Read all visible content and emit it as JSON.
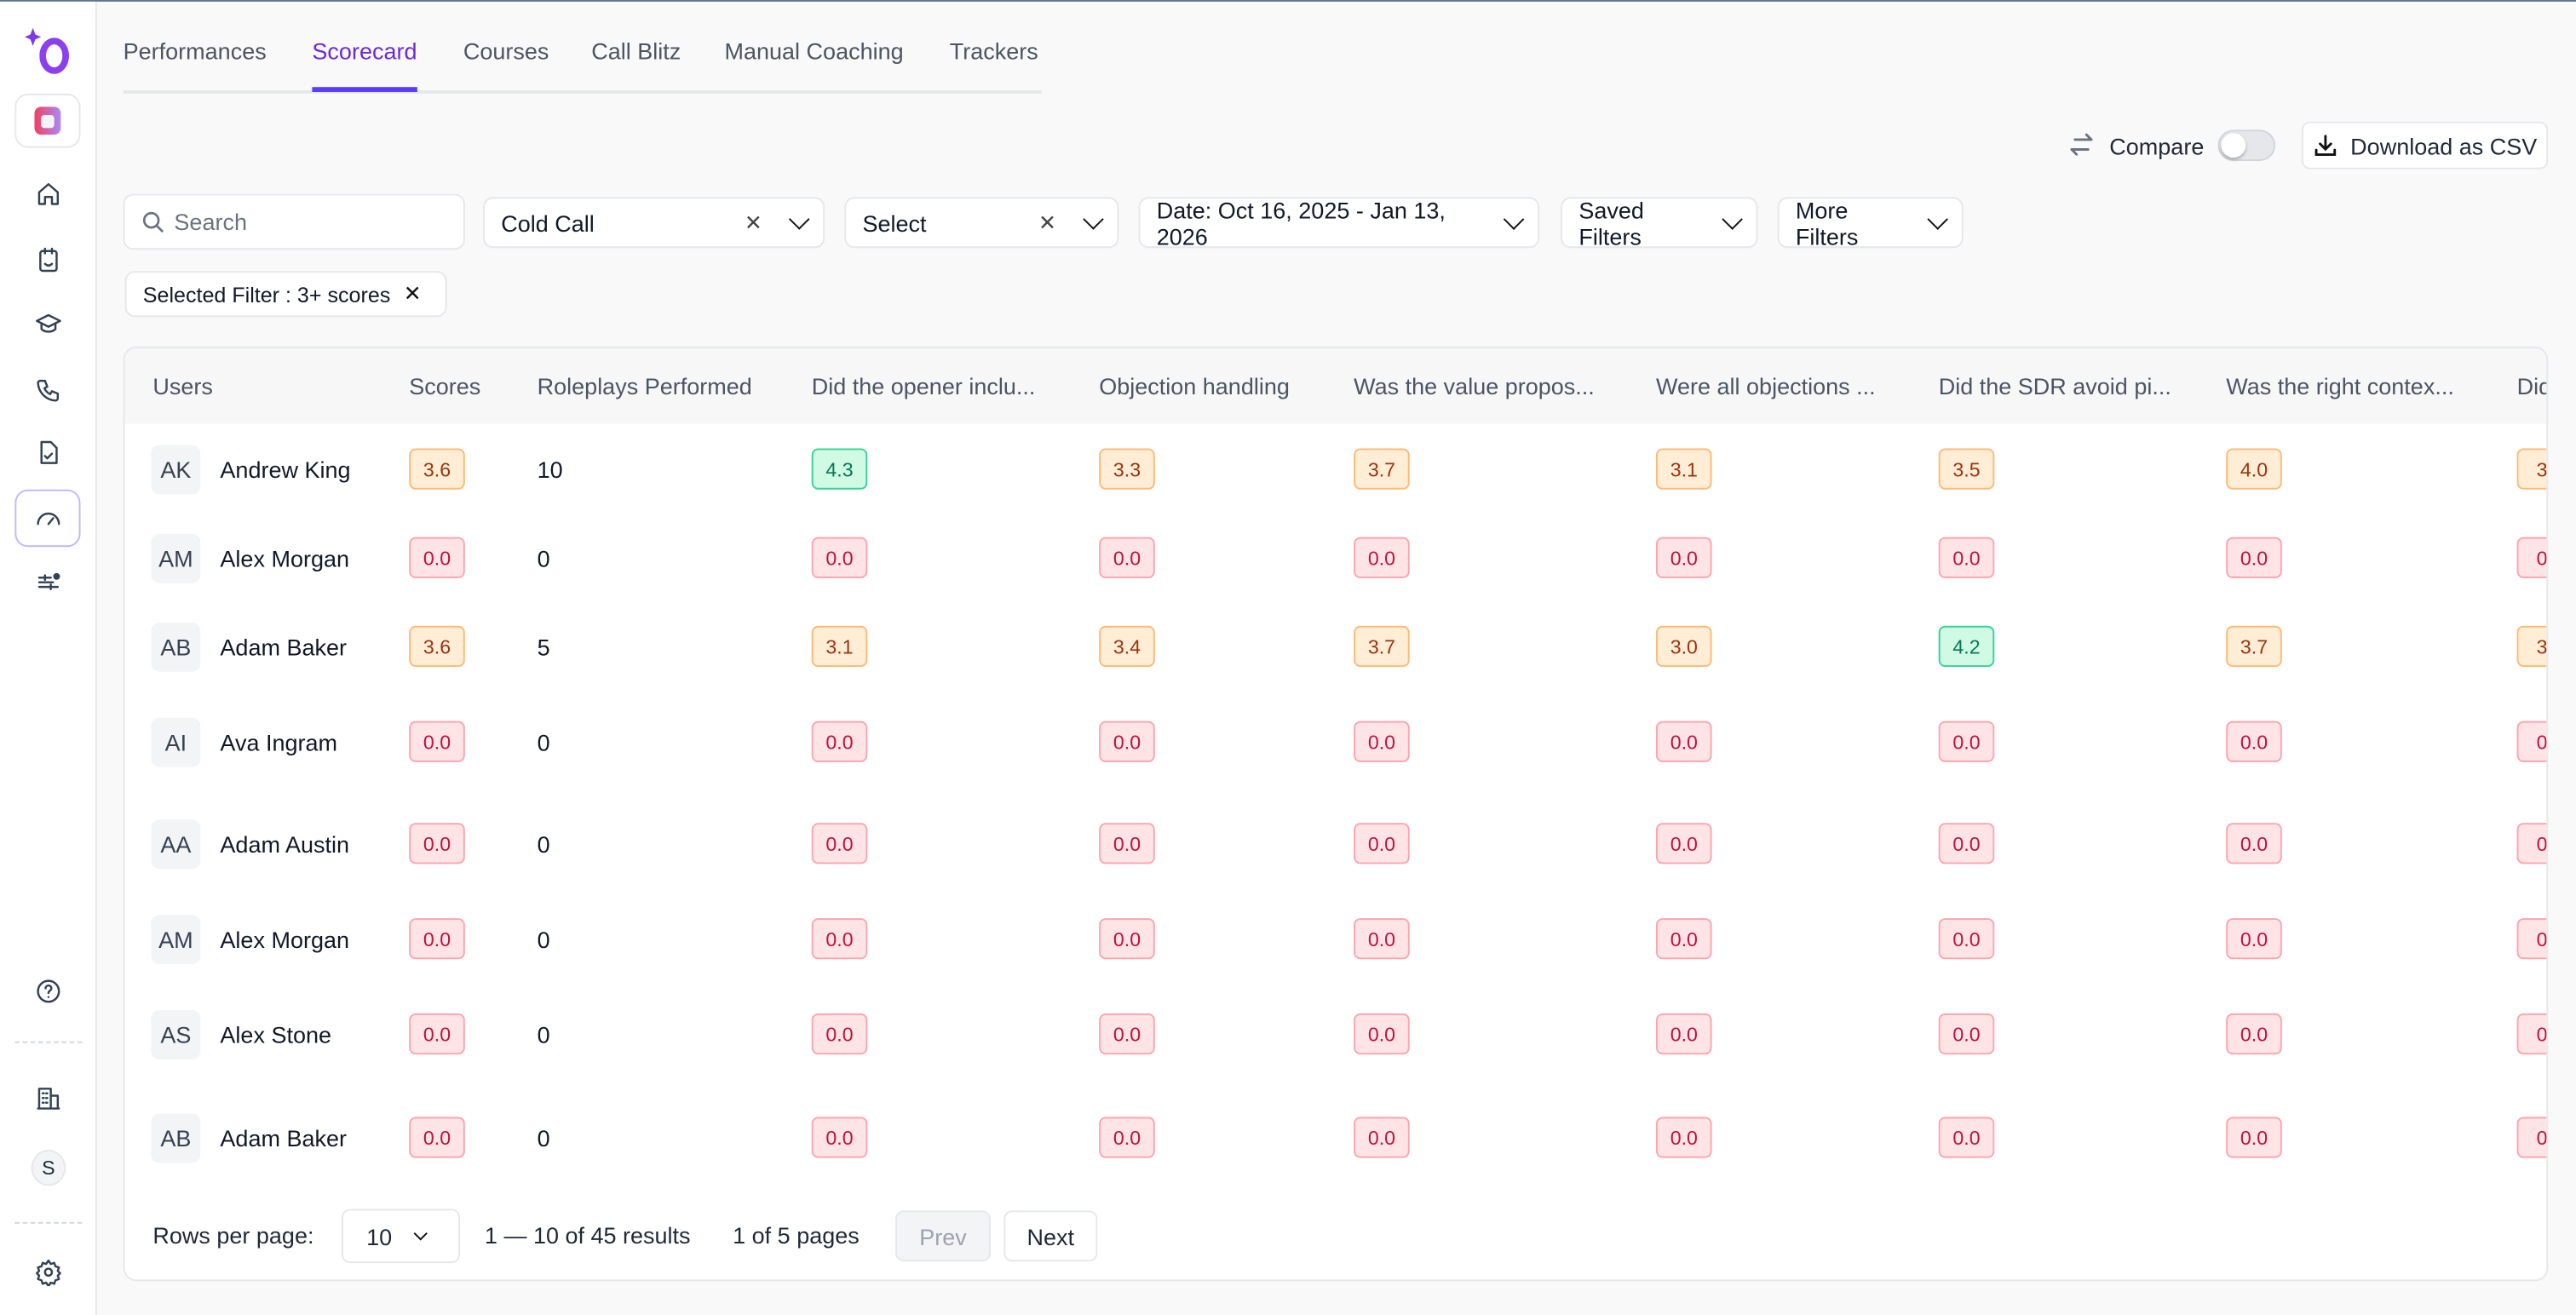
{
  "colors": {
    "accent": "#5b3df5",
    "badge_red": "#ffe4e6",
    "badge_orange": "#ffedd5",
    "badge_green": "#d1fae5"
  },
  "tabs": [
    {
      "label": "Performances"
    },
    {
      "label": "Scorecard",
      "active": true
    },
    {
      "label": "Courses"
    },
    {
      "label": "Call Blitz"
    },
    {
      "label": "Manual Coaching"
    },
    {
      "label": "Trackers"
    }
  ],
  "toolbar": {
    "compare_label": "Compare",
    "compare_on": false,
    "download_label": "Download as CSV"
  },
  "filters": {
    "search_placeholder": "Search",
    "type_value": "Cold Call",
    "second_placeholder": "Select",
    "date_label": "Date: Oct 16, 2025 - Jan 13, 2026",
    "saved_label": "Saved Filters",
    "more_label": "More Filters",
    "chip_label": "Selected Filter : 3+ scores"
  },
  "sidebar": {
    "user_initial": "S"
  },
  "table": {
    "columns": [
      "Users",
      "Scores",
      "Roleplays Performed",
      "Did the opener inclu...",
      "Objection handling",
      "Was the value propos...",
      "Were all objections ...",
      "Did the SDR avoid pi...",
      "Was the right contex...",
      "Did"
    ],
    "rows": [
      {
        "initials": "AK",
        "name": "Andrew King",
        "score": "3.6",
        "score_tone": "orange",
        "roleplays": "10",
        "cells": [
          [
            "4.3",
            "green"
          ],
          [
            "3.3",
            "orange"
          ],
          [
            "3.7",
            "orange"
          ],
          [
            "3.1",
            "orange"
          ],
          [
            "3.5",
            "orange"
          ],
          [
            "4.0",
            "orange"
          ],
          [
            "3.",
            "orange"
          ]
        ]
      },
      {
        "initials": "AM",
        "name": "Alex Morgan",
        "score": "0.0",
        "score_tone": "red",
        "roleplays": "0",
        "cells": [
          [
            "0.0",
            "red"
          ],
          [
            "0.0",
            "red"
          ],
          [
            "0.0",
            "red"
          ],
          [
            "0.0",
            "red"
          ],
          [
            "0.0",
            "red"
          ],
          [
            "0.0",
            "red"
          ],
          [
            "0.",
            "red"
          ]
        ]
      },
      {
        "initials": "AB",
        "name": "Adam Baker",
        "score": "3.6",
        "score_tone": "orange",
        "roleplays": "5",
        "cells": [
          [
            "3.1",
            "orange"
          ],
          [
            "3.4",
            "orange"
          ],
          [
            "3.7",
            "orange"
          ],
          [
            "3.0",
            "orange"
          ],
          [
            "4.2",
            "green"
          ],
          [
            "3.7",
            "orange"
          ],
          [
            "3.",
            "orange"
          ]
        ]
      },
      {
        "initials": "AI",
        "name": "Ava Ingram",
        "score": "0.0",
        "score_tone": "red",
        "roleplays": "0",
        "cells": [
          [
            "0.0",
            "red"
          ],
          [
            "0.0",
            "red"
          ],
          [
            "0.0",
            "red"
          ],
          [
            "0.0",
            "red"
          ],
          [
            "0.0",
            "red"
          ],
          [
            "0.0",
            "red"
          ],
          [
            "0.",
            "red"
          ]
        ]
      },
      {
        "initials": "AA",
        "name": "Adam Austin",
        "score": "0.0",
        "score_tone": "red",
        "roleplays": "0",
        "cells": [
          [
            "0.0",
            "red"
          ],
          [
            "0.0",
            "red"
          ],
          [
            "0.0",
            "red"
          ],
          [
            "0.0",
            "red"
          ],
          [
            "0.0",
            "red"
          ],
          [
            "0.0",
            "red"
          ],
          [
            "0.",
            "red"
          ]
        ]
      },
      {
        "initials": "AM",
        "name": "Alex Morgan",
        "score": "0.0",
        "score_tone": "red",
        "roleplays": "0",
        "cells": [
          [
            "0.0",
            "red"
          ],
          [
            "0.0",
            "red"
          ],
          [
            "0.0",
            "red"
          ],
          [
            "0.0",
            "red"
          ],
          [
            "0.0",
            "red"
          ],
          [
            "0.0",
            "red"
          ],
          [
            "0.",
            "red"
          ]
        ]
      },
      {
        "initials": "AS",
        "name": "Alex Stone",
        "score": "0.0",
        "score_tone": "red",
        "roleplays": "0",
        "cells": [
          [
            "0.0",
            "red"
          ],
          [
            "0.0",
            "red"
          ],
          [
            "0.0",
            "red"
          ],
          [
            "0.0",
            "red"
          ],
          [
            "0.0",
            "red"
          ],
          [
            "0.0",
            "red"
          ],
          [
            "0.",
            "red"
          ]
        ]
      },
      {
        "initials": "AB",
        "name": "Adam Baker",
        "score": "0.0",
        "score_tone": "red",
        "roleplays": "0",
        "cells": [
          [
            "0.0",
            "red"
          ],
          [
            "0.0",
            "red"
          ],
          [
            "0.0",
            "red"
          ],
          [
            "0.0",
            "red"
          ],
          [
            "0.0",
            "red"
          ],
          [
            "0.0",
            "red"
          ],
          [
            "0.",
            "red"
          ]
        ]
      }
    ]
  },
  "pagination": {
    "rows_label": "Rows per page:",
    "rows_value": "10",
    "range": "1 — 10 of 45 results",
    "pages": "1 of 5 pages",
    "prev": "Prev",
    "next": "Next"
  }
}
